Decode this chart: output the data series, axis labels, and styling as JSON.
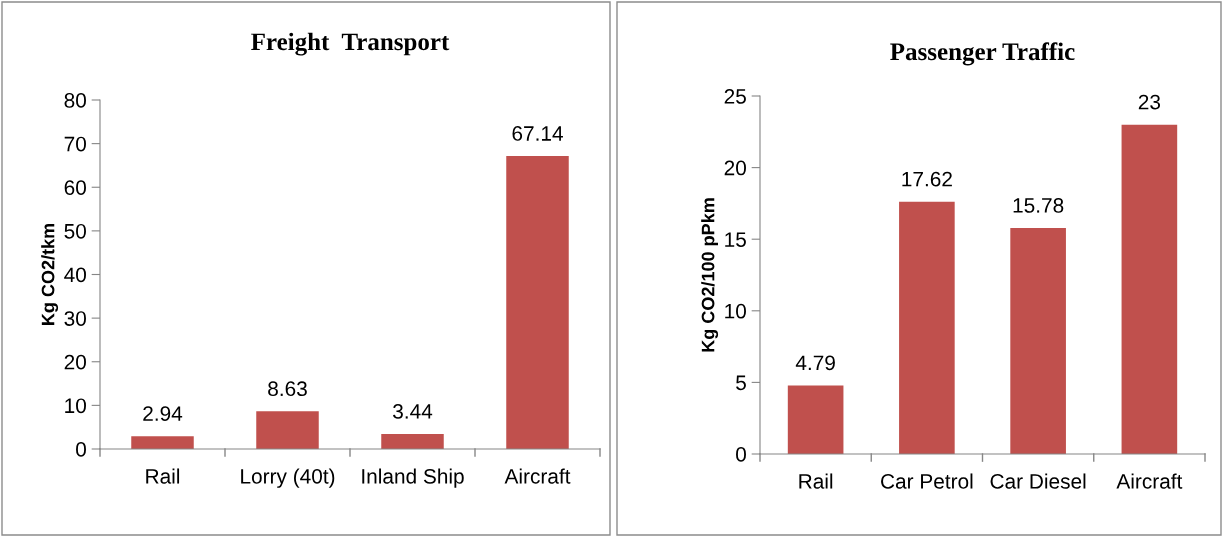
{
  "chart_data": [
    {
      "type": "bar",
      "title": "Freight  Transport",
      "ylabel": "Kg CO2/tkm",
      "categories": [
        "Rail",
        "Lorry (40t)",
        "Inland Ship",
        "Aircraft"
      ],
      "values": [
        2.94,
        8.63,
        3.44,
        67.14
      ],
      "color": "#c0504d",
      "ylim": [
        0,
        80
      ],
      "yticks": [
        0,
        10,
        20,
        30,
        40,
        50,
        60,
        70,
        80
      ],
      "data_labels": true
    },
    {
      "type": "bar",
      "title": "Passenger Traffic",
      "ylabel": "Kg CO2/100 pPkm",
      "categories": [
        "Rail",
        "Car Petrol",
        "Car Diesel",
        "Aircraft"
      ],
      "values": [
        4.79,
        17.62,
        15.78,
        23
      ],
      "color": "#c0504d",
      "ylim": [
        0,
        25
      ],
      "yticks": [
        0,
        5,
        10,
        15,
        20,
        25
      ],
      "data_labels": true
    }
  ]
}
